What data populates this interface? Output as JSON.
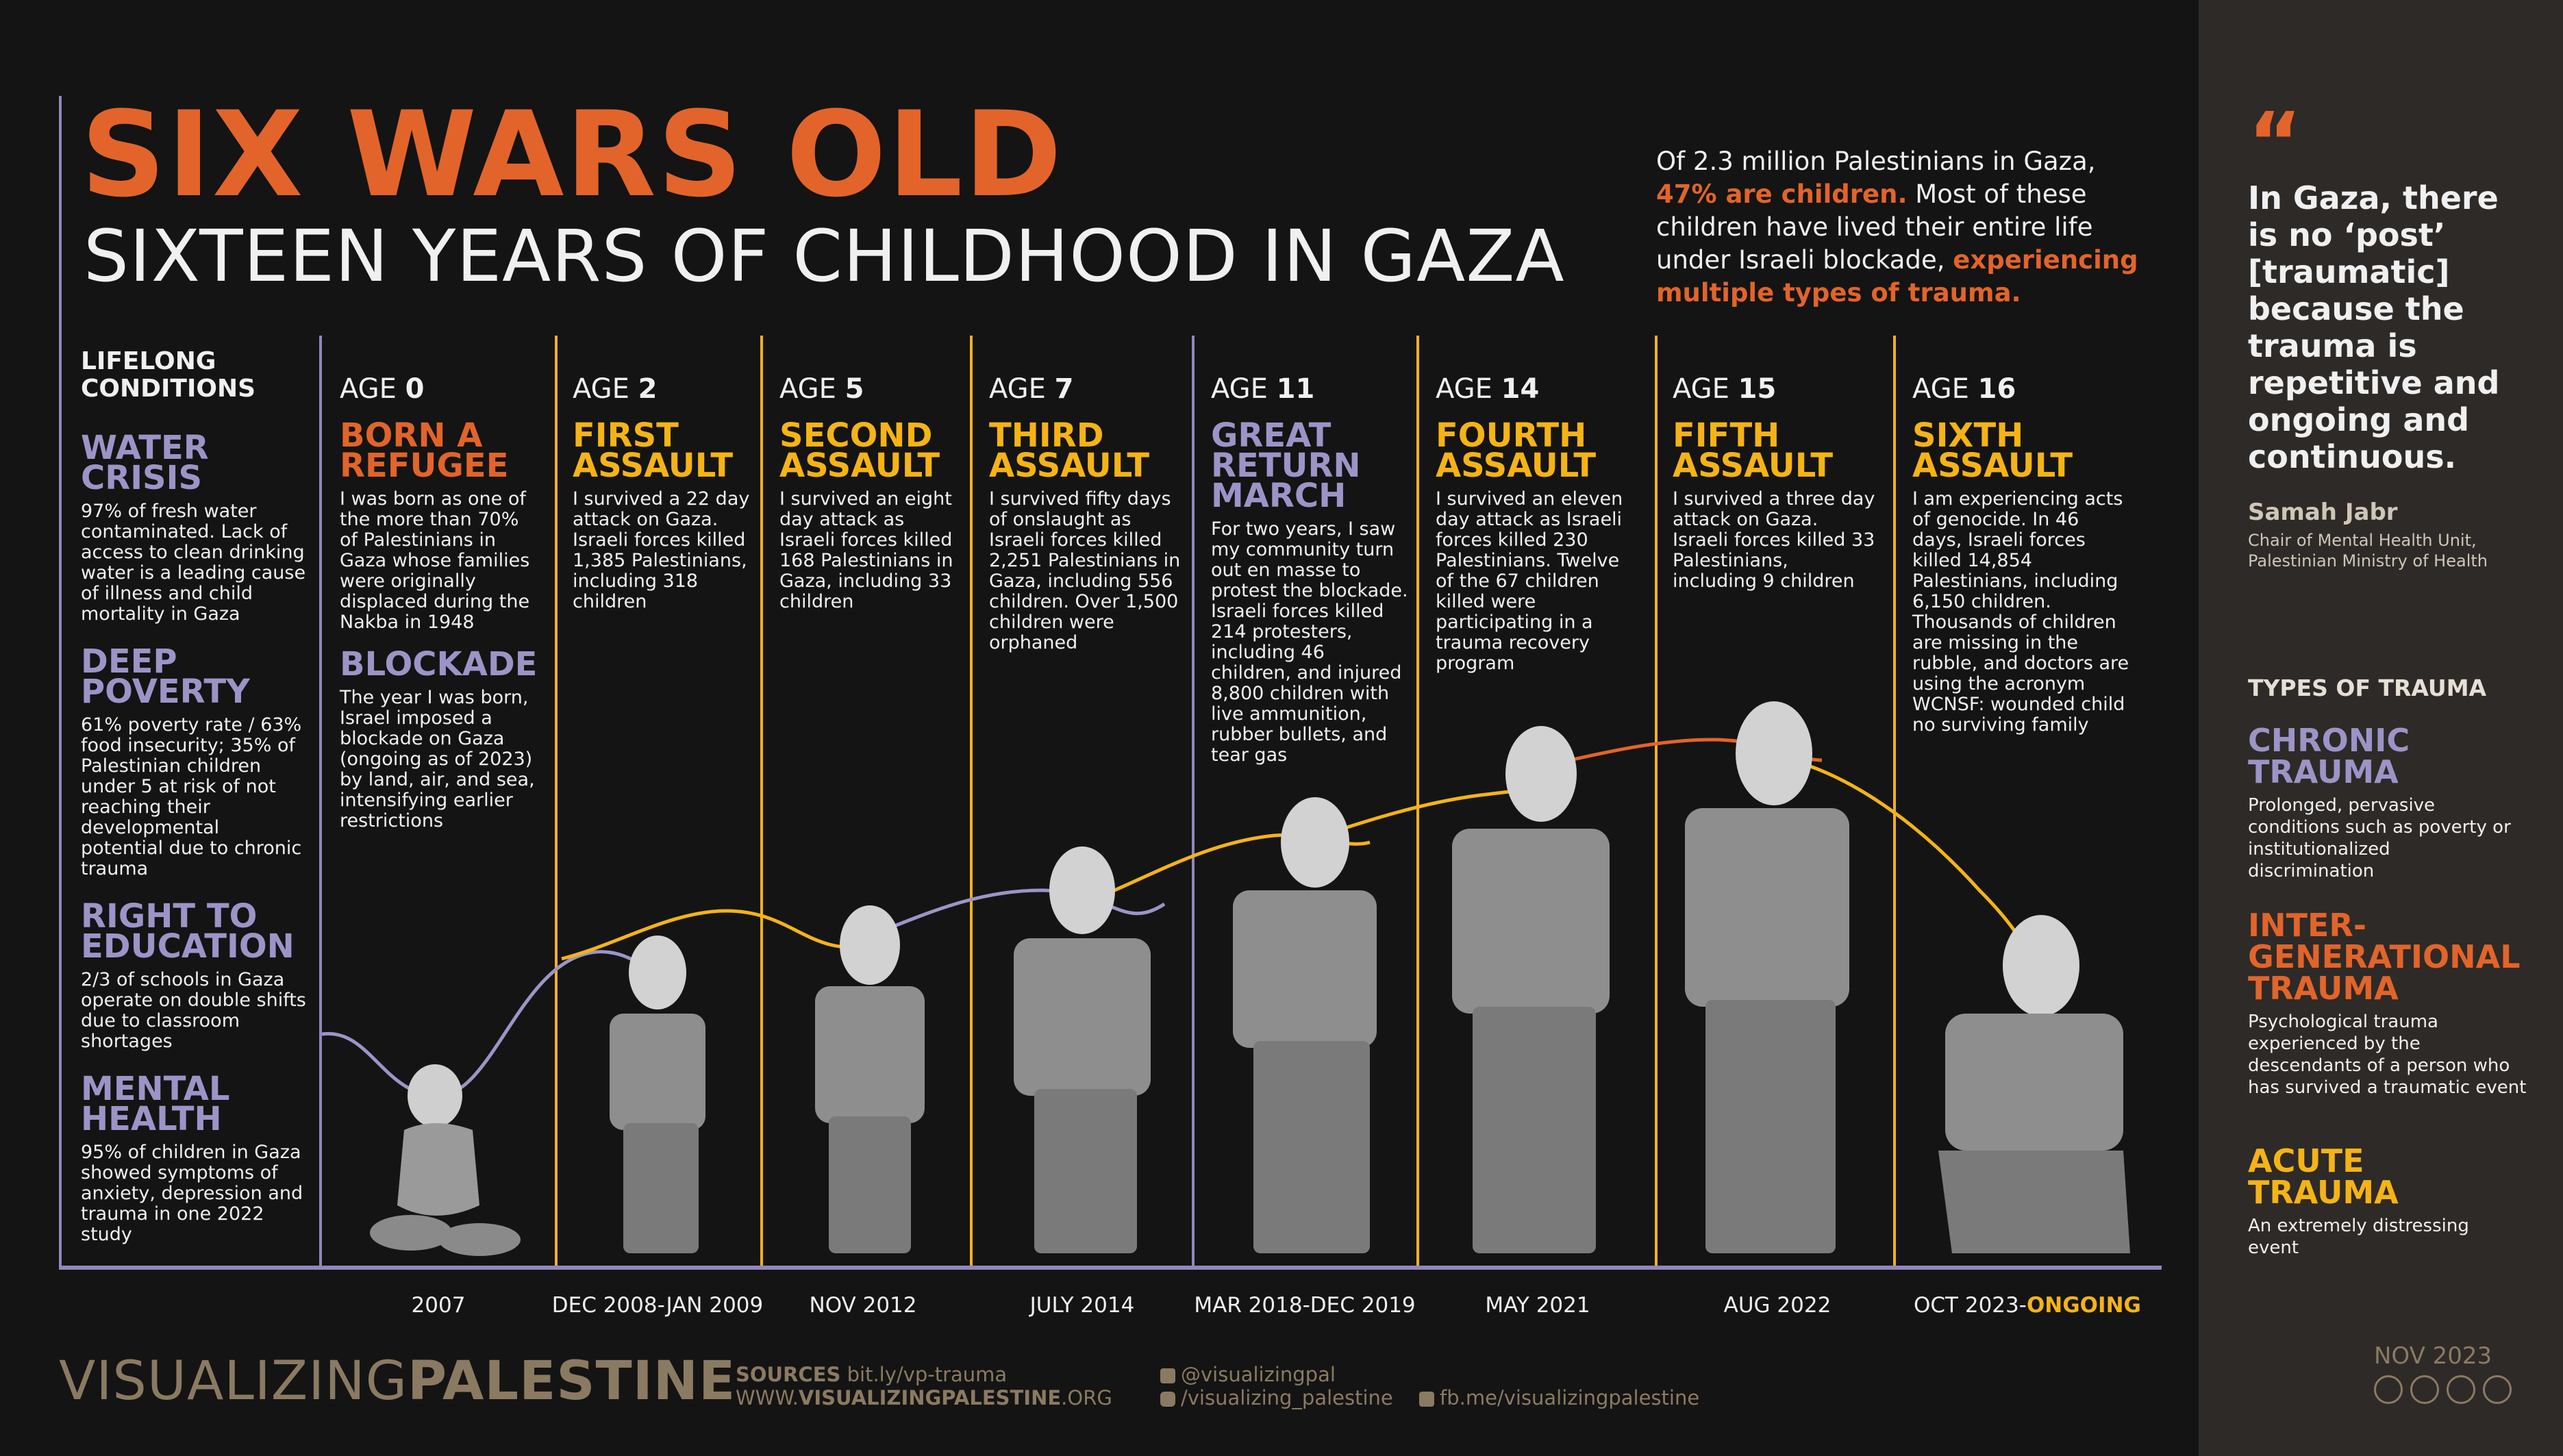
{
  "header": {
    "title": "SIX WARS OLD",
    "subtitle": "SIXTEEN YEARS OF CHILDHOOD IN GAZA",
    "intro_1": "Of 2.3 million Palestinians in Gaza,",
    "intro_hl_1": "47% are children.",
    "intro_2": "Most of these children have lived their entire life under Israeli blockade,",
    "intro_hl_2": "experiencing multiple types of trauma."
  },
  "lifelong": {
    "heading": "LIFELONG CONDITIONS",
    "items": [
      {
        "title": "WATER CRISIS",
        "body": "97% of fresh water contaminated. Lack of access to clean drinking water is a leading cause of illness and child mortality in Gaza"
      },
      {
        "title": "DEEP POVERTY",
        "body": "61% poverty rate / 63% food insecurity; 35% of Palestinian children under 5 at risk of not reaching their developmental potential due to chronic trauma"
      },
      {
        "title": "RIGHT TO EDUCATION",
        "body": "2/3 of schools in Gaza operate on double shifts due to classroom shortages"
      },
      {
        "title": "MENTAL HEALTH",
        "body": "95% of children in Gaza showed symptoms of anxiety, depression and trauma in one 2022 study"
      }
    ]
  },
  "age_label": "AGE",
  "timeline": [
    {
      "age": "0",
      "title": "BORN A REFUGEE",
      "body": "I was born as one of the more than 70% of Palestinians in Gaza whose families were originally displaced during the Nakba in 1948",
      "title2": "BLOCKADE",
      "body2": "The year I was born, Israel imposed a blockade on Gaza (ongoing as of 2023) by land, air, and sea, intensifying earlier restrictions",
      "date": "2007"
    },
    {
      "age": "2",
      "title": "FIRST ASSAULT",
      "body": "I survived a 22 day attack on Gaza. Israeli forces killed 1,385 Palestinians, including 318 children",
      "date": "DEC 2008-JAN 2009"
    },
    {
      "age": "5",
      "title": "SECOND ASSAULT",
      "body": "I survived an eight day attack as Israeli forces killed 168 Palestinians in Gaza, including 33 children",
      "date": "NOV 2012"
    },
    {
      "age": "7",
      "title": "THIRD ASSAULT",
      "body": "I survived fifty days of onslaught as Israeli forces killed 2,251 Palestinians in Gaza, including 556 children. Over 1,500 children were orphaned",
      "date": "JULY 2014"
    },
    {
      "age": "11",
      "title": "GREAT RETURN MARCH",
      "body": "For two years, I saw my community turn out en masse to protest the blockade. Israeli forces killed 214 protesters, including 46 children, and injured 8,800 children with live ammunition, rubber bullets, and tear gas",
      "date": "MAR 2018-DEC 2019"
    },
    {
      "age": "14",
      "title": "FOURTH ASSAULT",
      "body": "I survived an eleven day attack as Israeli forces killed 230 Palestinians. Twelve of the 67 children killed were participating in a trauma recovery program",
      "date": "MAY 2021"
    },
    {
      "age": "15",
      "title": "FIFTH ASSAULT",
      "body": "I survived a three day attack on Gaza. Israeli forces killed 33 Palestinians, including 9 children",
      "date": "AUG 2022"
    },
    {
      "age": "16",
      "title": "SIXTH ASSAULT",
      "body": "I am experiencing acts of genocide. In 46 days, Israeli forces killed 14,854 Palestinians, including 6,150 children. Thousands of children are missing in the rubble, and doctors are using the acronym WCNSF: wounded child no surviving family",
      "date": "OCT 2023-",
      "date_hl": "ONGOING"
    }
  ],
  "quote": {
    "mark": "“",
    "text": "In Gaza, there is no ‘post’ [traumatic] because the trauma is repetitive and ongoing and continuous.",
    "author": "Samah Jabr",
    "role": "Chair of Mental Health Unit, Palestinian Ministry of Health"
  },
  "trauma_types": {
    "heading": "TYPES OF TRAUMA",
    "items": [
      {
        "title": "CHRONIC TRAUMA",
        "body": "Prolonged, pervasive conditions such as poverty or institutionalized discrimination",
        "color": "#9c94c7"
      },
      {
        "title": "INTER-GENERATIONAL TRAUMA",
        "body": "Psychological trauma experienced by the descendants of a person who has survived a traumatic event",
        "color": "#e2642a"
      },
      {
        "title": "ACUTE TRAUMA",
        "body": "An extremely distressing event",
        "color": "#f5b316"
      }
    ]
  },
  "footer": {
    "logo_light": "VISUALIZING",
    "logo_bold": "PALESTINE",
    "sources_label": "SOURCES",
    "sources_link": "bit.ly/vp-trauma",
    "site_pre": "WWW.",
    "site_bold": "VISUALIZINGPALESTINE",
    "site_post": ".ORG",
    "twitter": "@visualizingpal",
    "instagram": "/visualizing_palestine",
    "facebook": "fb.me/visualizingpalestine",
    "date": "NOV 2023",
    "license": "cc by nc sa"
  },
  "colors": {
    "orange": "#e2642a",
    "purple": "#9c94c7",
    "yellow": "#f5b316",
    "background": "#141414",
    "sidebar": "#2e2a27"
  }
}
